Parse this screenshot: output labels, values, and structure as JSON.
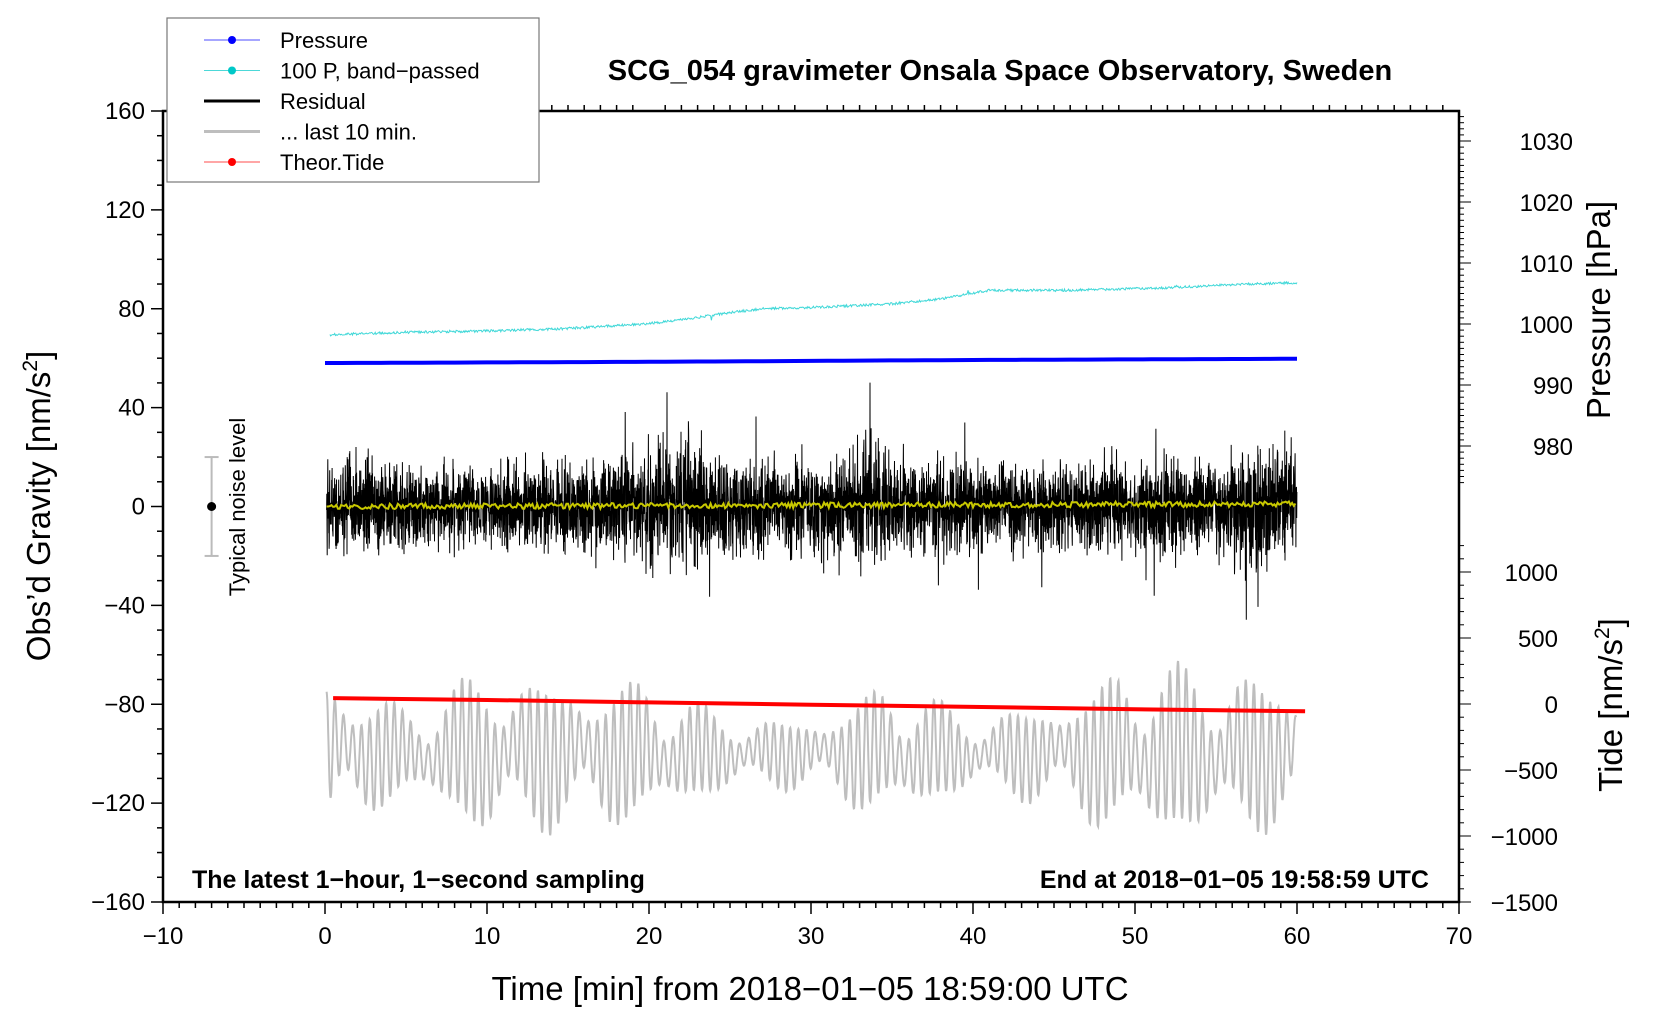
{
  "chart_data": {
    "type": "line",
    "title": "SCG_054 gravimeter Onsala Space Observatory, Sweden",
    "xlabel": "Time [min] from 2018−01−05 18:59:00 UTC",
    "ylabel_left": "Obs’d Gravity [nm/s",
    "ylabel_left_sup": "2",
    "ylabel_left_end": "]",
    "ylabel_right_pressure": "Pressure [hPa]",
    "ylabel_right_tide": "Tide [nm/s",
    "ylabel_right_tide_sup": "2",
    "ylabel_right_tide_end": "]",
    "annotation_left": "The latest 1−hour, 1−second sampling",
    "annotation_right": "End at 2018−01−05 19:58:59 UTC",
    "noise_label": "Typical noise level",
    "noise_level": {
      "x": -7,
      "center": 0,
      "half_range": 20
    },
    "xlim": [
      -10,
      70
    ],
    "ylim_left": [
      -160,
      160
    ],
    "pressure_axis": {
      "ticks": [
        980,
        990,
        1000,
        1010,
        1020,
        1030
      ],
      "labels": [
        "980",
        "990",
        "1000",
        "1010",
        "1020",
        "1030"
      ]
    },
    "tide_axis": {
      "ticks": [
        -1500,
        -1000,
        -500,
        0,
        500,
        1000
      ],
      "labels": [
        "−1500",
        "−1000",
        "−500",
        "0",
        "500",
        "1000"
      ]
    },
    "x_ticks": [
      -10,
      0,
      10,
      20,
      30,
      40,
      50,
      60,
      70
    ],
    "x_tick_labels": [
      "−10",
      "0",
      "10",
      "20",
      "30",
      "40",
      "50",
      "60",
      "70"
    ],
    "y_ticks": [
      -160,
      -120,
      -80,
      -40,
      0,
      40,
      80,
      120,
      160
    ],
    "y_tick_labels": [
      "−160",
      "−120",
      "−80",
      "−40",
      "0",
      "40",
      "80",
      "120",
      "160"
    ],
    "legend": {
      "placement": "top-left",
      "entries": [
        {
          "label": "Pressure",
          "color": "#0000ff",
          "marker": true
        },
        {
          "label": "100 P, band−passed",
          "color": "#00c8c8",
          "marker": true
        },
        {
          "label": "Residual",
          "color": "#000000",
          "marker": false
        },
        {
          "label": "... last 10 min.",
          "color": "#bebebe",
          "marker": false
        },
        {
          "label": "Theor.Tide",
          "color": "#ff0000",
          "marker": true
        }
      ]
    },
    "series": [
      {
        "name": "Pressure",
        "axis": "pressure_hPa",
        "color": "#0000ff",
        "x": [
          0,
          10,
          20,
          30,
          40,
          50,
          60
        ],
        "y": [
          993.6,
          993.7,
          993.8,
          993.95,
          994.1,
          994.2,
          994.3
        ]
      },
      {
        "name": "100 P, band-passed",
        "axis": "left",
        "color": "#40d8d8",
        "x": [
          0.3,
          5,
          10,
          15,
          20,
          22,
          25,
          27,
          30,
          35,
          38,
          41,
          46,
          52,
          57,
          60
        ],
        "y": [
          69.5,
          70.5,
          71,
          72,
          74,
          75.5,
          78.5,
          80,
          80.5,
          82,
          84,
          87.5,
          87.5,
          88.5,
          90,
          90.5
        ]
      },
      {
        "name": "Residual",
        "axis": "left",
        "color": "#000000",
        "x": [
          0,
          5,
          10,
          15,
          20,
          22,
          25,
          30,
          33,
          34,
          35,
          40,
          45,
          50,
          55,
          57.5,
          60
        ],
        "amplitude": [
          30,
          25,
          24,
          28,
          30,
          40,
          28,
          28,
          36,
          40,
          28,
          26,
          25,
          28,
          27,
          38,
          32
        ]
      },
      {
        "name": "Residual smoothed",
        "axis": "left",
        "color": "#c8c800",
        "x": [
          0,
          60
        ],
        "y": [
          0,
          1
        ]
      },
      {
        "name": "... last 10 min.",
        "axis": "left",
        "color": "#bebebe",
        "x": [
          0,
          5,
          10,
          15,
          20,
          25,
          30,
          35,
          40,
          45,
          50,
          55,
          60
        ],
        "center": [
          -100,
          -100,
          -100,
          -100,
          -100,
          -100,
          -100,
          -100,
          -100,
          -100,
          -100,
          -100,
          -100
        ],
        "amplitude": [
          28,
          15,
          28,
          25,
          24,
          12,
          12,
          24,
          12,
          18,
          30,
          28,
          25
        ]
      },
      {
        "name": "Theor.Tide",
        "axis": "tide_nm_s2",
        "color": "#ff0000",
        "x": [
          0.5,
          10,
          20,
          30,
          40,
          50,
          60.5
        ],
        "y": [
          45,
          30,
          12,
          -5,
          -22,
          -40,
          -55
        ]
      }
    ]
  }
}
